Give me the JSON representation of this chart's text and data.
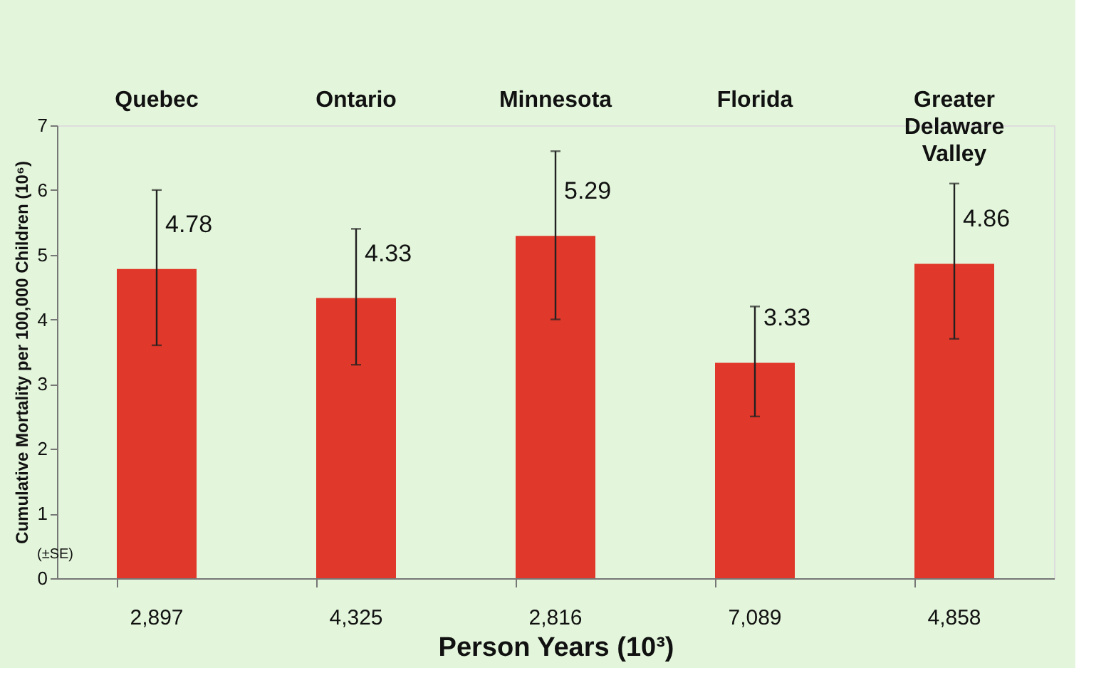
{
  "chart_data": {
    "type": "bar",
    "categories": [
      "2,897",
      "4,325",
      "2,816",
      "7,089",
      "4,858"
    ],
    "values": [
      4.78,
      4.33,
      5.29,
      3.33,
      4.86
    ],
    "errors": [
      [
        3.6,
        6.0
      ],
      [
        3.3,
        5.4
      ],
      [
        4.0,
        6.6
      ],
      [
        2.5,
        4.2
      ],
      [
        3.7,
        6.1
      ]
    ],
    "color": "#e0382a",
    "data_labels": true,
    "xlabel": "Person Years (10³)",
    "ylabel": "Cumulative Mortality per 100,000 Children (10⁶)",
    "ylim": [
      0,
      7
    ],
    "yticks": [
      0,
      1,
      2,
      3,
      4,
      5,
      6,
      7
    ],
    "grid": false,
    "annotations": [
      "Quebec",
      "Ontario",
      "Minnesota",
      "Florida",
      "Greater Delaware Valley",
      "(±SE)"
    ]
  }
}
